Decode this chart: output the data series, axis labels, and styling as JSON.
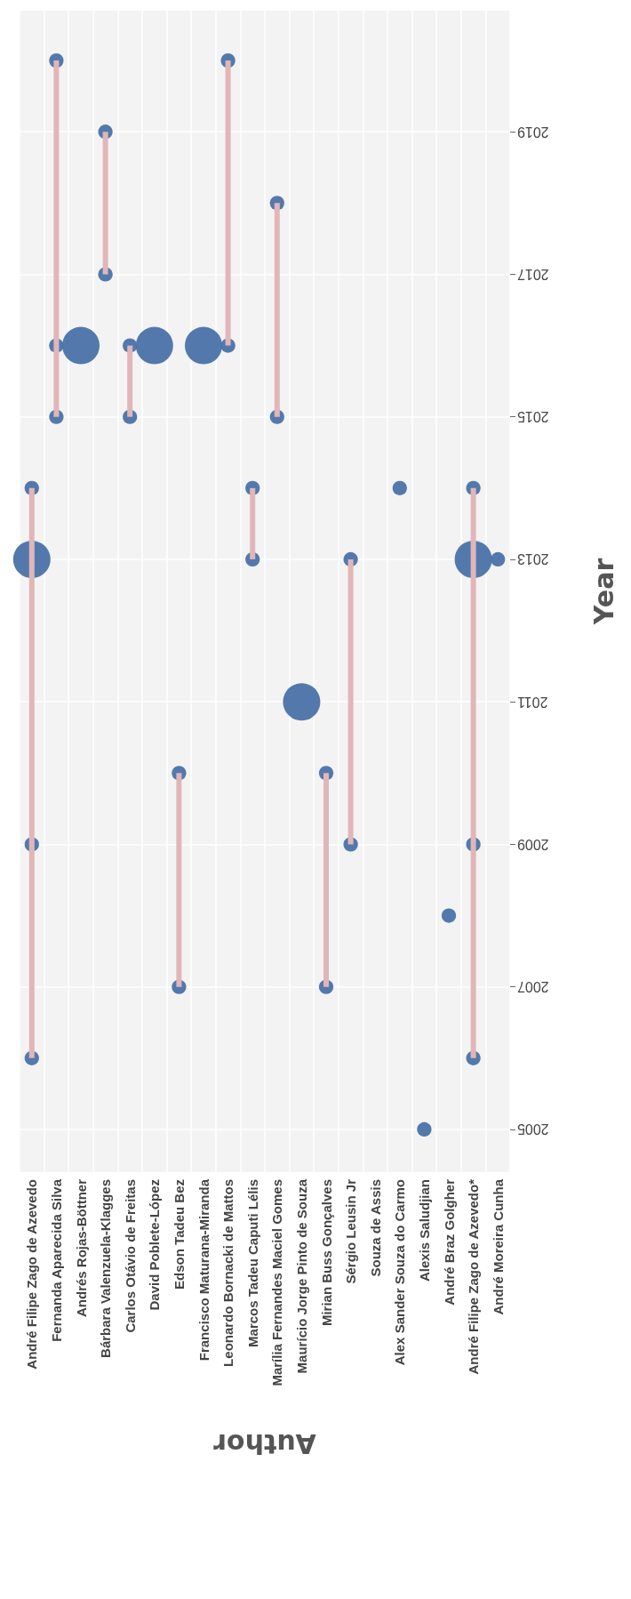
{
  "chart_data": {
    "type": "bar",
    "xlabel": "Author",
    "ylabel": "Year",
    "categories": [
      "André Filipe Zago de Azevedo",
      "Fernanda Aparecida Silva",
      "Andrés Rojas-Böttner",
      "Bárbara Valenzuela-Klagges",
      "Carlos Otávio de Freitas",
      "David Poblete-López",
      "Edson Tadeu Bez",
      "Francisco Maturana-Miranda",
      "Leonardo Bornacki de Mattos",
      "Marcos Tadeu Caputi Lélis",
      "Marília Fernandes Maciel Gomes",
      "Maurício Jorge Pinto de Souza",
      "Mirian Buss Gonçalves",
      "Sérgio Leusin Jr",
      "Souza de Assis",
      "Alex Sander Souza do Carmo",
      "Alexis Saludjian",
      "André Braz Golgher",
      "André Filipe Zago de Azevedo*",
      "André Moreira Cunha"
    ],
    "series": [
      {
        "color": "#e2b6b8",
        "base": [
          2006,
          2015,
          null,
          2017,
          2015,
          null,
          2007,
          null,
          2016,
          2013,
          2015,
          null,
          2007,
          2009,
          null,
          null,
          null,
          null,
          2006,
          null
        ],
        "values": [
          8,
          5,
          null,
          2,
          1,
          null,
          3,
          null,
          4,
          1,
          3,
          null,
          3,
          4,
          null,
          null,
          null,
          null,
          8,
          null
        ]
      },
      {
        "type": "bubble",
        "color": "#4a72a8",
        "x": [
          "André Filipe Zago de Azevedo",
          "André Filipe Zago de Azevedo",
          "André Filipe Zago de Azevedo",
          "André Filipe Zago de Azevedo",
          "Fernanda Aparecida Silva",
          "Fernanda Aparecida Silva",
          "Fernanda Aparecida Silva",
          "Andrés Rojas-Böttner",
          "Bárbara Valenzuela-Klagges",
          "Bárbara Valenzuela-Klagges",
          "Carlos Otávio de Freitas",
          "Carlos Otávio de Freitas",
          "David Poblete-López",
          "Edson Tadeu Bez",
          "Edson Tadeu Bez",
          "Francisco Maturana-Miranda",
          "Leonardo Bornacki de Mattos",
          "Leonardo Bornacki de Mattos",
          "Marcos Tadeu Caputi Lélis",
          "Marcos Tadeu Caputi Lélis",
          "Marília Fernandes Maciel Gomes",
          "Marília Fernandes Maciel Gomes",
          "Maurício Jorge Pinto de Souza",
          "Mirian Buss Gonçalves",
          "Mirian Buss Gonçalves",
          "Sérgio Leusin Jr",
          "Sérgio Leusin Jr",
          "Alex Sander Souza do Carmo",
          "Alexis Saludjian",
          "André Braz Golgher",
          "André Filipe Zago de Azevedo*",
          "André Filipe Zago de Azevedo*",
          "André Filipe Zago de Azevedo*",
          "André Filipe Zago de Azevedo*",
          "André Moreira Cunha"
        ],
        "values": [
          2006,
          2009,
          2013,
          2014,
          2015,
          2016,
          2020,
          2016,
          2017,
          2019,
          2015,
          2016,
          2016,
          2007,
          2010,
          2016,
          2016,
          2020,
          2013,
          2014,
          2015,
          2018,
          2011,
          2007,
          2010,
          2009,
          2013,
          2014,
          2005,
          2008,
          2006,
          2009,
          2013,
          2014,
          2013
        ],
        "sizes": [
          0.15,
          0.15,
          1,
          0.15,
          0.15,
          0.15,
          0.15,
          1,
          0.15,
          0.15,
          0.15,
          0.15,
          1,
          0.15,
          0.15,
          1,
          0.15,
          0.15,
          0.15,
          0.15,
          0.15,
          0.15,
          1,
          0.15,
          0.15,
          0.15,
          0.15,
          0.15,
          0.15,
          0.15,
          0.15,
          0.15,
          1,
          0.15,
          0.15
        ]
      }
    ],
    "ylim": [
      2004.4,
      2020.7
    ],
    "yticks": [
      2005,
      2007,
      2009,
      2011,
      2013,
      2015,
      2017,
      2019
    ],
    "grid": true
  }
}
